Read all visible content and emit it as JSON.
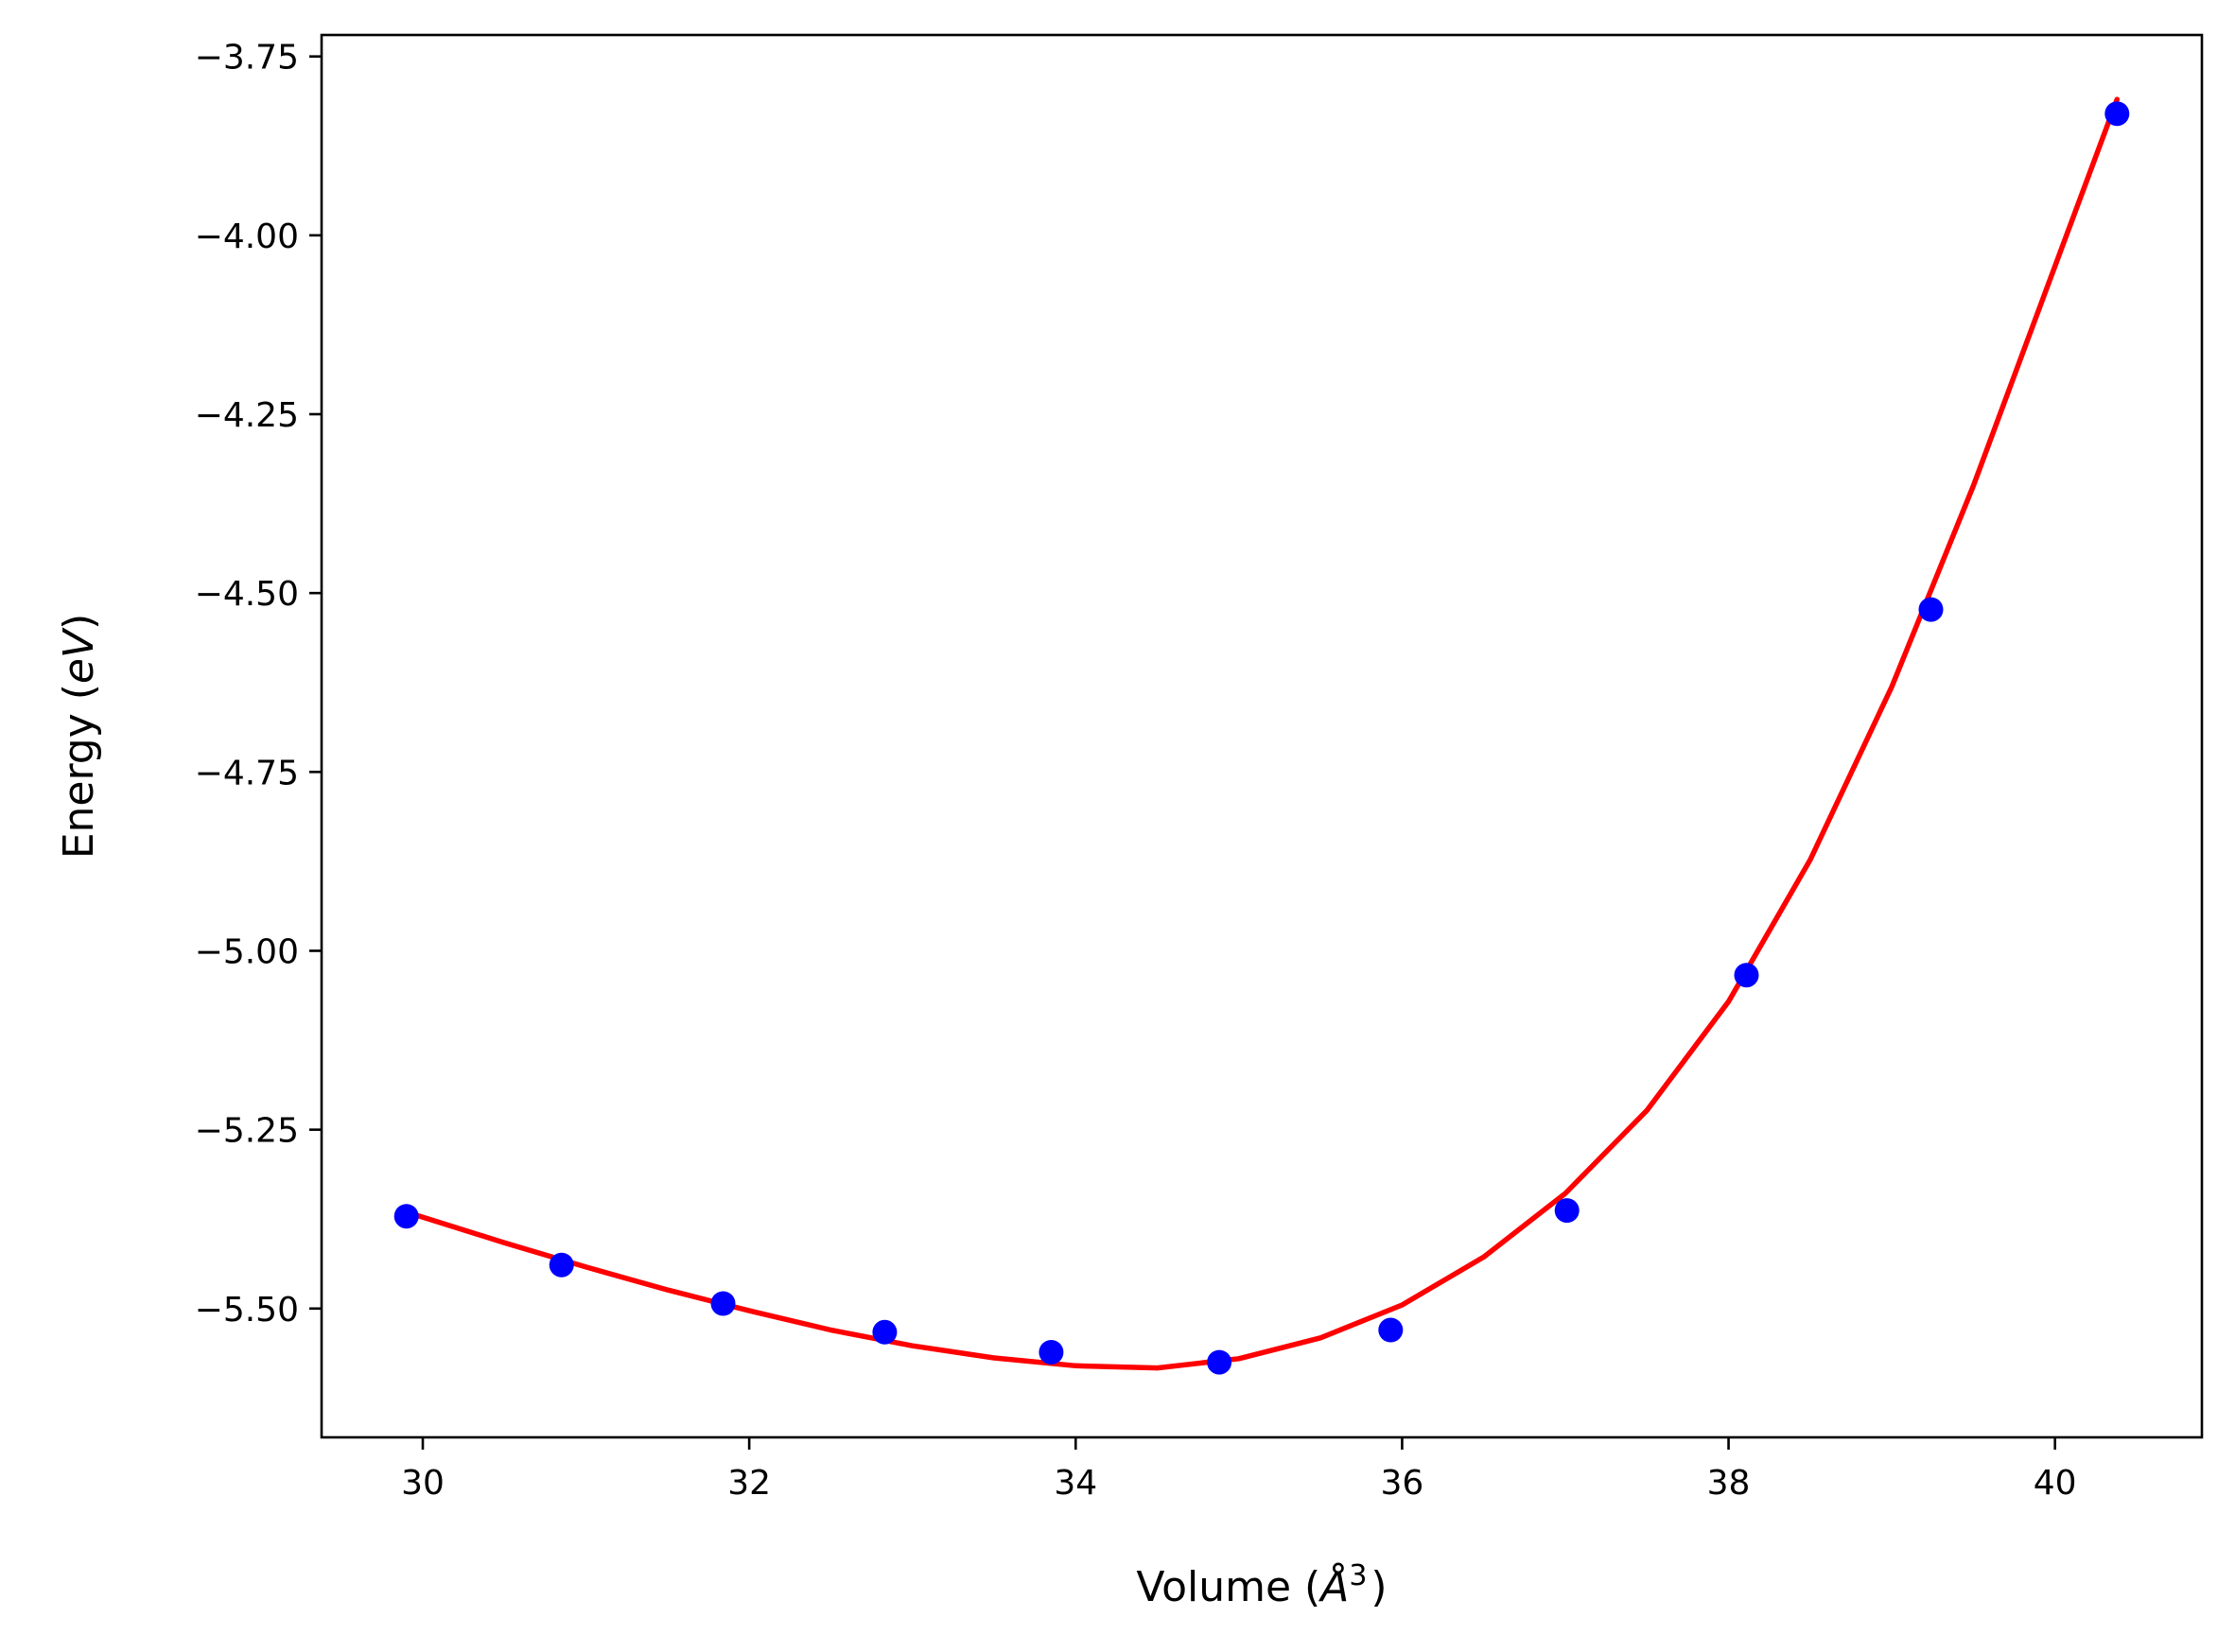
{
  "chart_data": {
    "type": "scatter",
    "title": "",
    "xlabel": {
      "pre": "Volume (",
      "sym": "Å",
      "sup": "3",
      "post": ")"
    },
    "ylabel": {
      "pre": "Energy (",
      "ital": "eV",
      "post": ")"
    },
    "xlim": [
      29.38,
      40.9
    ],
    "ylim": [
      -5.68,
      -3.72
    ],
    "x_ticks": [
      30,
      32,
      34,
      36,
      38,
      40
    ],
    "x_tick_labels": [
      "30",
      "32",
      "34",
      "36",
      "38",
      "40"
    ],
    "y_ticks": [
      -3.75,
      -4.0,
      -4.25,
      -4.5,
      -4.75,
      -5.0,
      -5.25,
      -5.5
    ],
    "y_tick_labels": [
      "−3.75",
      "−4.00",
      "−4.25",
      "−4.50",
      "−4.75",
      "−5.00",
      "−5.25",
      "−5.50"
    ],
    "grid": false,
    "series": [
      {
        "kind": "points",
        "color": "#0000ff",
        "x": [
          29.9,
          30.85,
          31.84,
          32.83,
          33.85,
          34.88,
          35.93,
          37.01,
          38.11,
          39.24,
          40.38
        ],
        "y": [
          -5.371,
          -5.439,
          -5.493,
          -5.533,
          -5.561,
          -5.575,
          -5.53,
          -5.363,
          -5.034,
          -4.523,
          -3.83
        ]
      },
      {
        "kind": "fit-line",
        "color": "#ff0000",
        "x": [
          29.9,
          30.5,
          31.0,
          31.5,
          32.0,
          32.5,
          33.0,
          33.5,
          34.0,
          34.5,
          35.0,
          35.5,
          36.0,
          36.5,
          37.0,
          37.5,
          38.0,
          38.5,
          39.0,
          39.5,
          40.0,
          40.38
        ],
        "y": [
          -5.365,
          -5.408,
          -5.442,
          -5.474,
          -5.503,
          -5.53,
          -5.552,
          -5.569,
          -5.58,
          -5.583,
          -5.57,
          -5.541,
          -5.495,
          -5.428,
          -5.339,
          -5.223,
          -5.071,
          -4.873,
          -4.631,
          -4.35,
          -4.043,
          -3.81
        ]
      }
    ]
  }
}
